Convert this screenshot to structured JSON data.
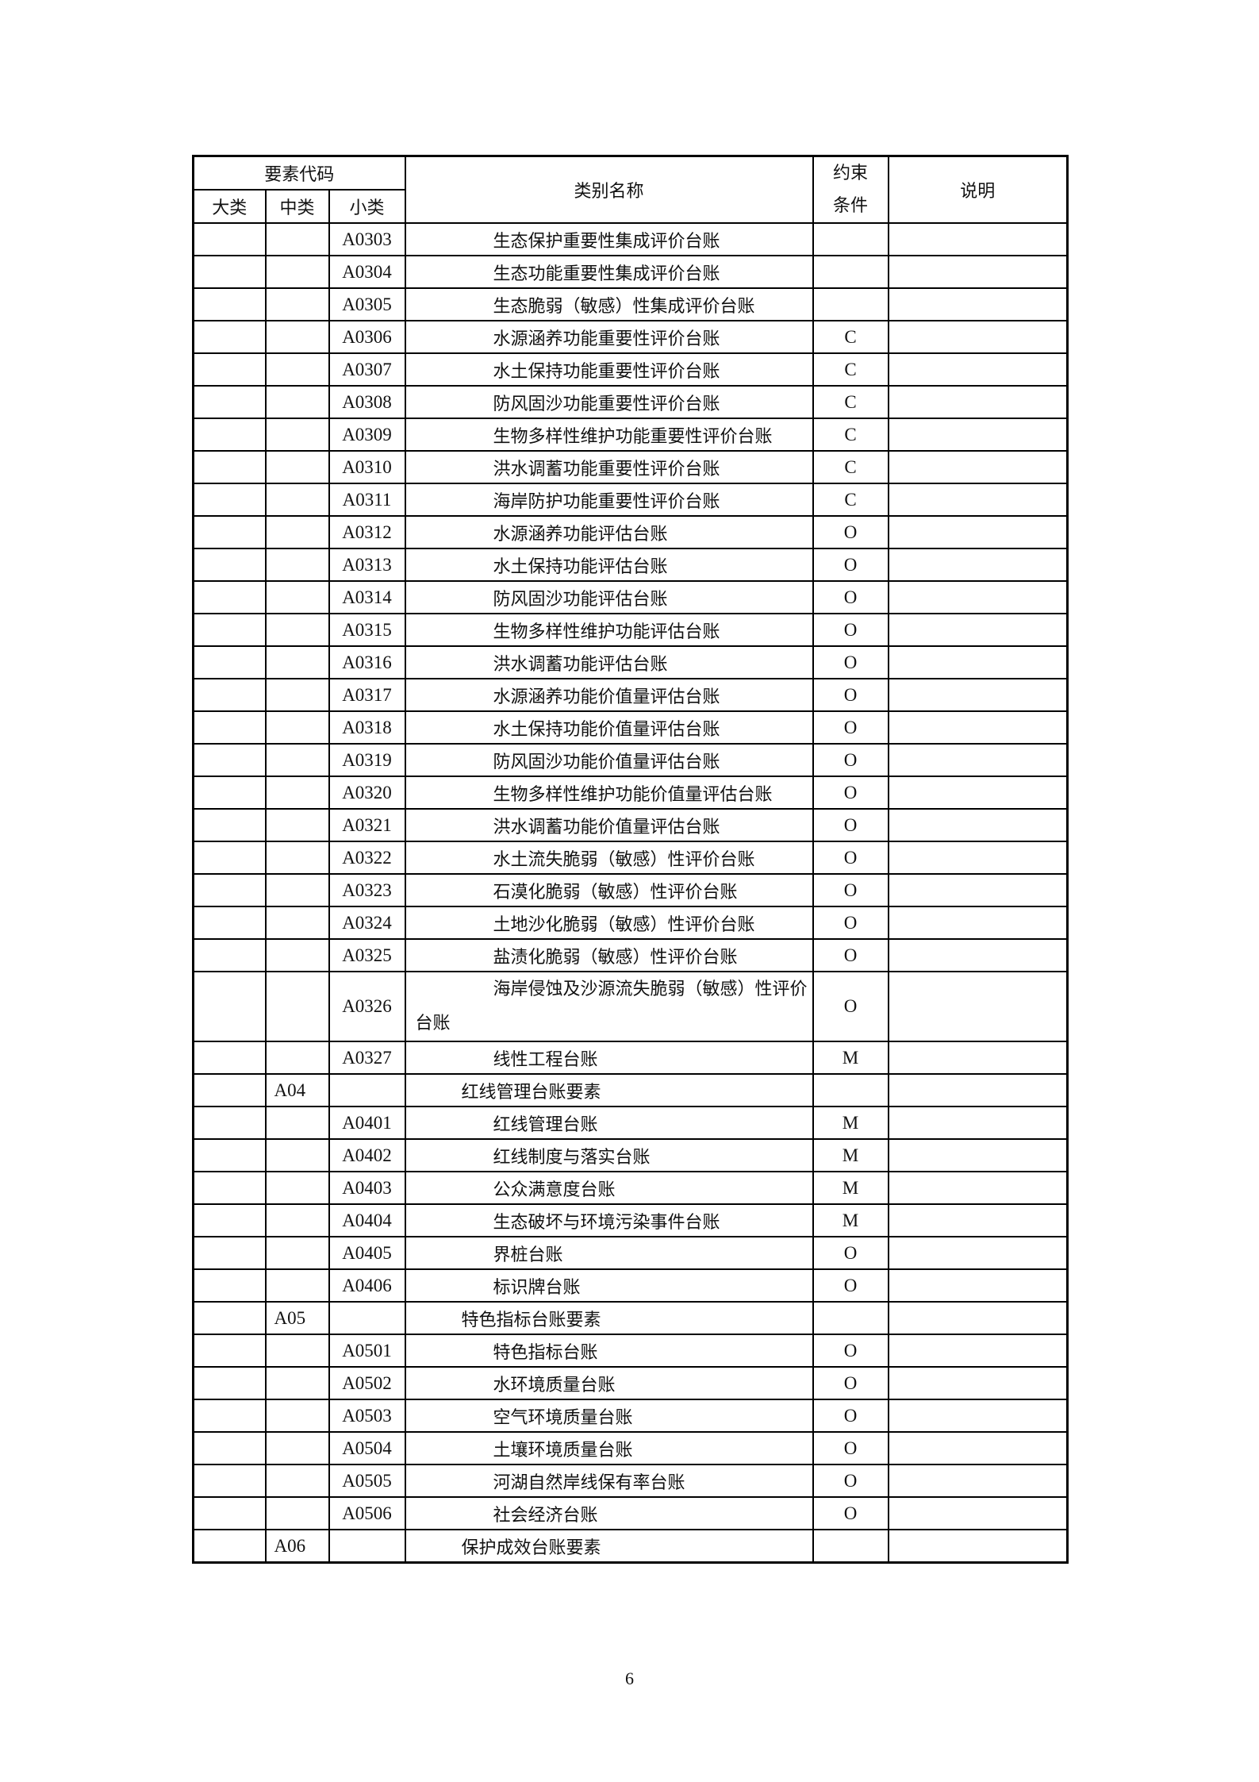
{
  "header": {
    "code_group": "要素代码",
    "major": "大类",
    "middle": "中类",
    "minor": "小类",
    "name": "类别名称",
    "constraint": "约束条件",
    "note": "说明"
  },
  "rows": [
    {
      "mid": "",
      "code": "A0303",
      "name": "生态保护重要性集成评价台账",
      "c": ""
    },
    {
      "mid": "",
      "code": "A0304",
      "name": "生态功能重要性集成评价台账",
      "c": ""
    },
    {
      "mid": "",
      "code": "A0305",
      "name": "生态脆弱（敏感）性集成评价台账",
      "c": ""
    },
    {
      "mid": "",
      "code": "A0306",
      "name": "水源涵养功能重要性评价台账",
      "c": "C"
    },
    {
      "mid": "",
      "code": "A0307",
      "name": "水土保持功能重要性评价台账",
      "c": "C"
    },
    {
      "mid": "",
      "code": "A0308",
      "name": "防风固沙功能重要性评价台账",
      "c": "C"
    },
    {
      "mid": "",
      "code": "A0309",
      "name": "生物多样性维护功能重要性评价台账",
      "c": "C"
    },
    {
      "mid": "",
      "code": "A0310",
      "name": "洪水调蓄功能重要性评价台账",
      "c": "C"
    },
    {
      "mid": "",
      "code": "A0311",
      "name": "海岸防护功能重要性评价台账",
      "c": "C"
    },
    {
      "mid": "",
      "code": "A0312",
      "name": "水源涵养功能评估台账",
      "c": "O"
    },
    {
      "mid": "",
      "code": "A0313",
      "name": "水土保持功能评估台账",
      "c": "O"
    },
    {
      "mid": "",
      "code": "A0314",
      "name": "防风固沙功能评估台账",
      "c": "O"
    },
    {
      "mid": "",
      "code": "A0315",
      "name": "生物多样性维护功能评估台账",
      "c": "O"
    },
    {
      "mid": "",
      "code": "A0316",
      "name": "洪水调蓄功能评估台账",
      "c": "O"
    },
    {
      "mid": "",
      "code": "A0317",
      "name": "水源涵养功能价值量评估台账",
      "c": "O"
    },
    {
      "mid": "",
      "code": "A0318",
      "name": "水土保持功能价值量评估台账",
      "c": "O"
    },
    {
      "mid": "",
      "code": "A0319",
      "name": "防风固沙功能价值量评估台账",
      "c": "O"
    },
    {
      "mid": "",
      "code": "A0320",
      "name": "生物多样性维护功能价值量评估台账",
      "c": "O"
    },
    {
      "mid": "",
      "code": "A0321",
      "name": "洪水调蓄功能价值量评估台账",
      "c": "O"
    },
    {
      "mid": "",
      "code": "A0322",
      "name": "水土流失脆弱（敏感）性评价台账",
      "c": "O"
    },
    {
      "mid": "",
      "code": "A0323",
      "name": "石漠化脆弱（敏感）性评价台账",
      "c": "O"
    },
    {
      "mid": "",
      "code": "A0324",
      "name": "土地沙化脆弱（敏感）性评价台账",
      "c": "O"
    },
    {
      "mid": "",
      "code": "A0325",
      "name": "盐渍化脆弱（敏感）性评价台账",
      "c": "O"
    },
    {
      "mid": "",
      "code": "A0326",
      "name": "海岸侵蚀及沙源流失脆弱（敏感）性评价台账",
      "c": "O",
      "wrap": true
    },
    {
      "mid": "",
      "code": "A0327",
      "name": "线性工程台账",
      "c": "M"
    },
    {
      "mid": "A04",
      "code": "",
      "name": "红线管理台账要素",
      "c": "",
      "section": true
    },
    {
      "mid": "",
      "code": "A0401",
      "name": "红线管理台账",
      "c": "M"
    },
    {
      "mid": "",
      "code": "A0402",
      "name": "红线制度与落实台账",
      "c": "M"
    },
    {
      "mid": "",
      "code": "A0403",
      "name": "公众满意度台账",
      "c": "M"
    },
    {
      "mid": "",
      "code": "A0404",
      "name": "生态破坏与环境污染事件台账",
      "c": "M"
    },
    {
      "mid": "",
      "code": "A0405",
      "name": "界桩台账",
      "c": "O"
    },
    {
      "mid": "",
      "code": "A0406",
      "name": "标识牌台账",
      "c": "O"
    },
    {
      "mid": "A05",
      "code": "",
      "name": "特色指标台账要素",
      "c": "",
      "section": true
    },
    {
      "mid": "",
      "code": "A0501",
      "name": "特色指标台账",
      "c": "O"
    },
    {
      "mid": "",
      "code": "A0502",
      "name": "水环境质量台账",
      "c": "O"
    },
    {
      "mid": "",
      "code": "A0503",
      "name": "空气环境质量台账",
      "c": "O"
    },
    {
      "mid": "",
      "code": "A0504",
      "name": "土壤环境质量台账",
      "c": "O"
    },
    {
      "mid": "",
      "code": "A0505",
      "name": "河湖自然岸线保有率台账",
      "c": "O"
    },
    {
      "mid": "",
      "code": "A0506",
      "name": "社会经济台账",
      "c": "O"
    },
    {
      "mid": "A06",
      "code": "",
      "name": "保护成效台账要素",
      "c": "",
      "section": true
    }
  ],
  "page_number": "6"
}
